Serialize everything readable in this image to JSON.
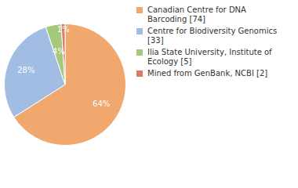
{
  "chart_data": {
    "type": "pie",
    "categories": [
      "Canadian Centre for DNA Barcoding [74]",
      "Centre for Biodiversity Genomics [33]",
      "Ilia State University, Institute of Ecology [5]",
      "Mined from GenBank, NCBI [2]"
    ],
    "values": [
      64,
      28,
      4,
      1
    ],
    "value_labels": [
      "64%",
      "28%",
      "4%",
      "1%"
    ],
    "colors": [
      "#f0a86e",
      "#a2bde3",
      "#a5c87b",
      "#e0786a"
    ],
    "data_labels": true,
    "legend": "right"
  }
}
